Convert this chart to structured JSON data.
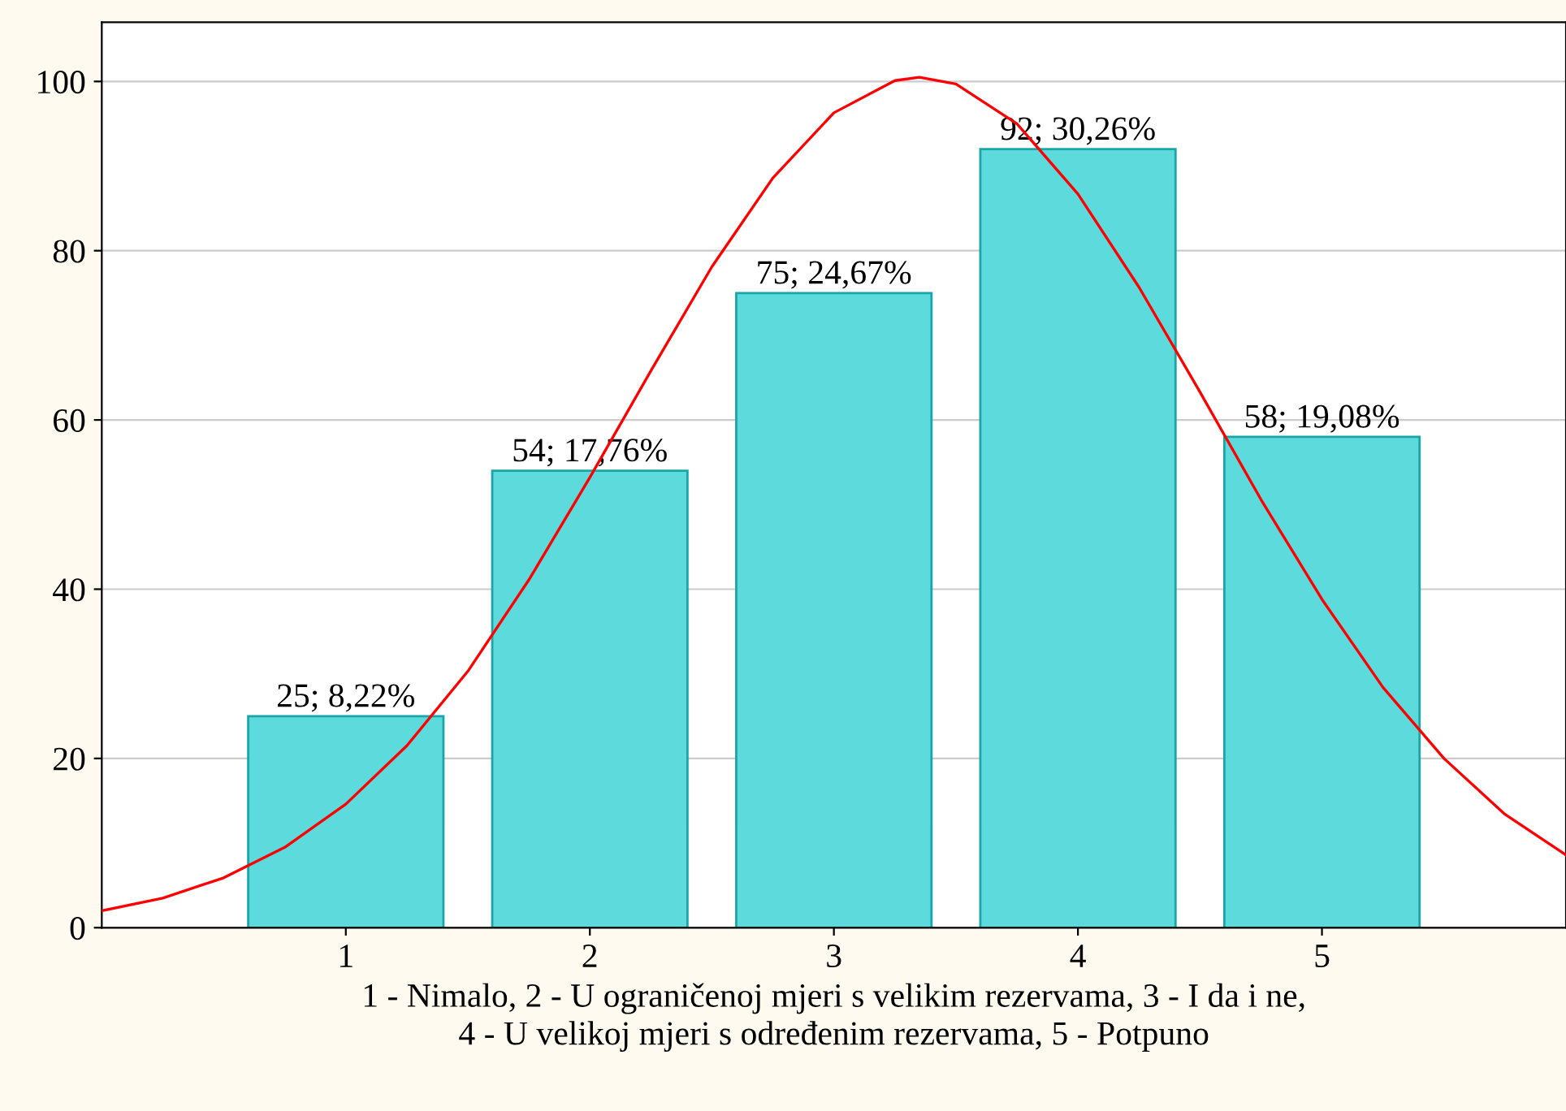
{
  "chart_data": {
    "type": "bar",
    "xlabel": "1 - Nimalo, 2 - U ograničenoj mjeri s velikim rezervama, 3 - I da i ne,\n4 - U velikoj mjeri s određenim rezervama, 5 - Potpuno",
    "series": [
      {
        "color": "#5cdadc",
        "x": [
          1,
          2,
          3,
          4,
          5
        ],
        "values": [
          25,
          54,
          75,
          92,
          58
        ],
        "value_labels": [
          "25; 8,22%",
          "54; 17,76%",
          "75; 24,67%",
          "92; 30,26%",
          "58; 19,08%"
        ]
      },
      {
        "type": "line",
        "color": "#ff0000",
        "x": [
          0,
          0.25,
          0.5,
          0.75,
          1,
          1.25,
          1.5,
          1.75,
          2,
          2.25,
          2.5,
          2.75,
          3,
          3.25,
          3.35,
          3.5,
          3.75,
          4,
          4.25,
          4.5,
          4.75,
          5,
          5.25,
          5.5,
          5.75,
          6
        ],
        "values": [
          2.0,
          3.5,
          5.9,
          9.5,
          14.6,
          21.5,
          30.3,
          41.1,
          53.2,
          65.8,
          78.1,
          88.6,
          96.3,
          100.1,
          100.5,
          99.7,
          95.0,
          86.7,
          75.7,
          63.3,
          50.6,
          38.8,
          28.4,
          20.0,
          13.4,
          8.6
        ]
      }
    ],
    "xlim": [
      0,
      6
    ],
    "xticks": [
      1,
      2,
      3,
      4,
      5
    ],
    "ylim": [
      0,
      107
    ],
    "yticks": [
      0,
      20,
      40,
      60,
      80,
      100
    ],
    "grid": "y"
  }
}
